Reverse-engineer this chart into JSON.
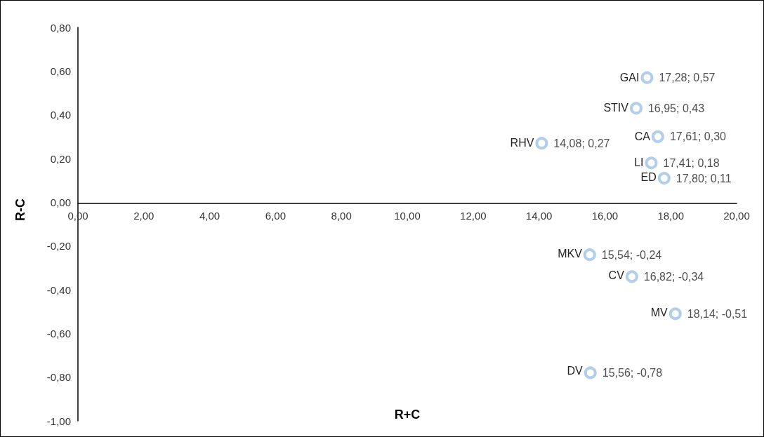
{
  "chart_data": {
    "type": "scatter",
    "xlabel": "R+C",
    "ylabel": "R-C",
    "xlim": [
      0,
      20
    ],
    "ylim": [
      -1,
      0.8
    ],
    "xticks": [
      {
        "value": 0,
        "label": "0,00"
      },
      {
        "value": 2,
        "label": "2,00"
      },
      {
        "value": 4,
        "label": "4,00"
      },
      {
        "value": 6,
        "label": "6,00"
      },
      {
        "value": 8,
        "label": "8,00"
      },
      {
        "value": 10,
        "label": "10,00"
      },
      {
        "value": 12,
        "label": "12,00"
      },
      {
        "value": 14,
        "label": "14,00"
      },
      {
        "value": 16,
        "label": "16,00"
      },
      {
        "value": 18,
        "label": "18,00"
      },
      {
        "value": 20,
        "label": "20,00"
      }
    ],
    "yticks": [
      {
        "value": -1,
        "label": "-1,00"
      },
      {
        "value": -0.8,
        "label": "-0,80"
      },
      {
        "value": -0.6,
        "label": "-0,60"
      },
      {
        "value": -0.4,
        "label": "-0,40"
      },
      {
        "value": -0.2,
        "label": "-0,20"
      },
      {
        "value": 0,
        "label": "0,00"
      },
      {
        "value": 0.2,
        "label": "0,20"
      },
      {
        "value": 0.4,
        "label": "0,40"
      },
      {
        "value": 0.6,
        "label": "0,60"
      },
      {
        "value": 0.8,
        "label": "0,80"
      }
    ],
    "grid": false,
    "legend": false,
    "marker": "circle",
    "series": [
      {
        "name": "GAI",
        "color": "#9dc3e6",
        "x": [
          17.28
        ],
        "values": [
          0.57
        ],
        "value_labels": [
          "17,28; 0,57"
        ]
      },
      {
        "name": "STIV",
        "color": "#9dc3e6",
        "x": [
          16.95
        ],
        "values": [
          0.43
        ],
        "value_labels": [
          "16,95; 0,43"
        ]
      },
      {
        "name": "CA",
        "color": "#9dc3e6",
        "x": [
          17.61
        ],
        "values": [
          0.3
        ],
        "value_labels": [
          "17,61; 0,30"
        ]
      },
      {
        "name": "RHV",
        "color": "#9dc3e6",
        "x": [
          14.08
        ],
        "values": [
          0.27
        ],
        "value_labels": [
          "14,08; 0,27"
        ]
      },
      {
        "name": "LI",
        "color": "#9dc3e6",
        "x": [
          17.41
        ],
        "values": [
          0.18
        ],
        "value_labels": [
          "17,41; 0,18"
        ]
      },
      {
        "name": "ED",
        "color": "#9dc3e6",
        "x": [
          17.8
        ],
        "values": [
          0.11
        ],
        "value_labels": [
          "17,80; 0,11"
        ]
      },
      {
        "name": "MKV",
        "color": "#9dc3e6",
        "x": [
          15.54
        ],
        "values": [
          -0.24
        ],
        "value_labels": [
          "15,54; -0,24"
        ]
      },
      {
        "name": "CV",
        "color": "#9dc3e6",
        "x": [
          16.82
        ],
        "values": [
          -0.34
        ],
        "value_labels": [
          "16,82; -0,34"
        ]
      },
      {
        "name": "MV",
        "color": "#9dc3e6",
        "x": [
          18.14
        ],
        "values": [
          -0.51
        ],
        "value_labels": [
          "18,14; -0,51"
        ]
      },
      {
        "name": "DV",
        "color": "#9dc3e6",
        "x": [
          15.56
        ],
        "values": [
          -0.78
        ],
        "value_labels": [
          "15,56; -0,78"
        ]
      }
    ]
  }
}
